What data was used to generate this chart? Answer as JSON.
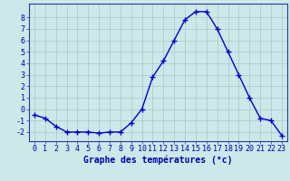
{
  "hours": [
    0,
    1,
    2,
    3,
    4,
    5,
    6,
    7,
    8,
    9,
    10,
    11,
    12,
    13,
    14,
    15,
    16,
    17,
    18,
    19,
    20,
    21,
    22,
    23
  ],
  "temps": [
    -0.5,
    -0.8,
    -1.5,
    -2.0,
    -2.0,
    -2.0,
    -2.1,
    -2.0,
    -2.0,
    -1.2,
    0.0,
    2.8,
    4.2,
    6.0,
    7.8,
    8.5,
    8.5,
    7.0,
    5.0,
    3.0,
    1.0,
    -0.8,
    -1.0,
    -2.3
  ],
  "line_color": "#0000cc",
  "marker": "+",
  "marker_size": 4,
  "marker_lw": 1.0,
  "line_width": 1.0,
  "bg_color": "#cce8e8",
  "grid_color": "#aac8c8",
  "xlabel": "Graphe des températures (°c)",
  "xlabel_fontsize": 7,
  "ylabel_ticks": [
    -2,
    -1,
    0,
    1,
    2,
    3,
    4,
    5,
    6,
    7,
    8
  ],
  "ylim": [
    -2.8,
    9.2
  ],
  "xlim": [
    -0.5,
    23.5
  ],
  "tick_fontsize": 6,
  "axis_color": "#0000aa",
  "spine_color": "#333399"
}
